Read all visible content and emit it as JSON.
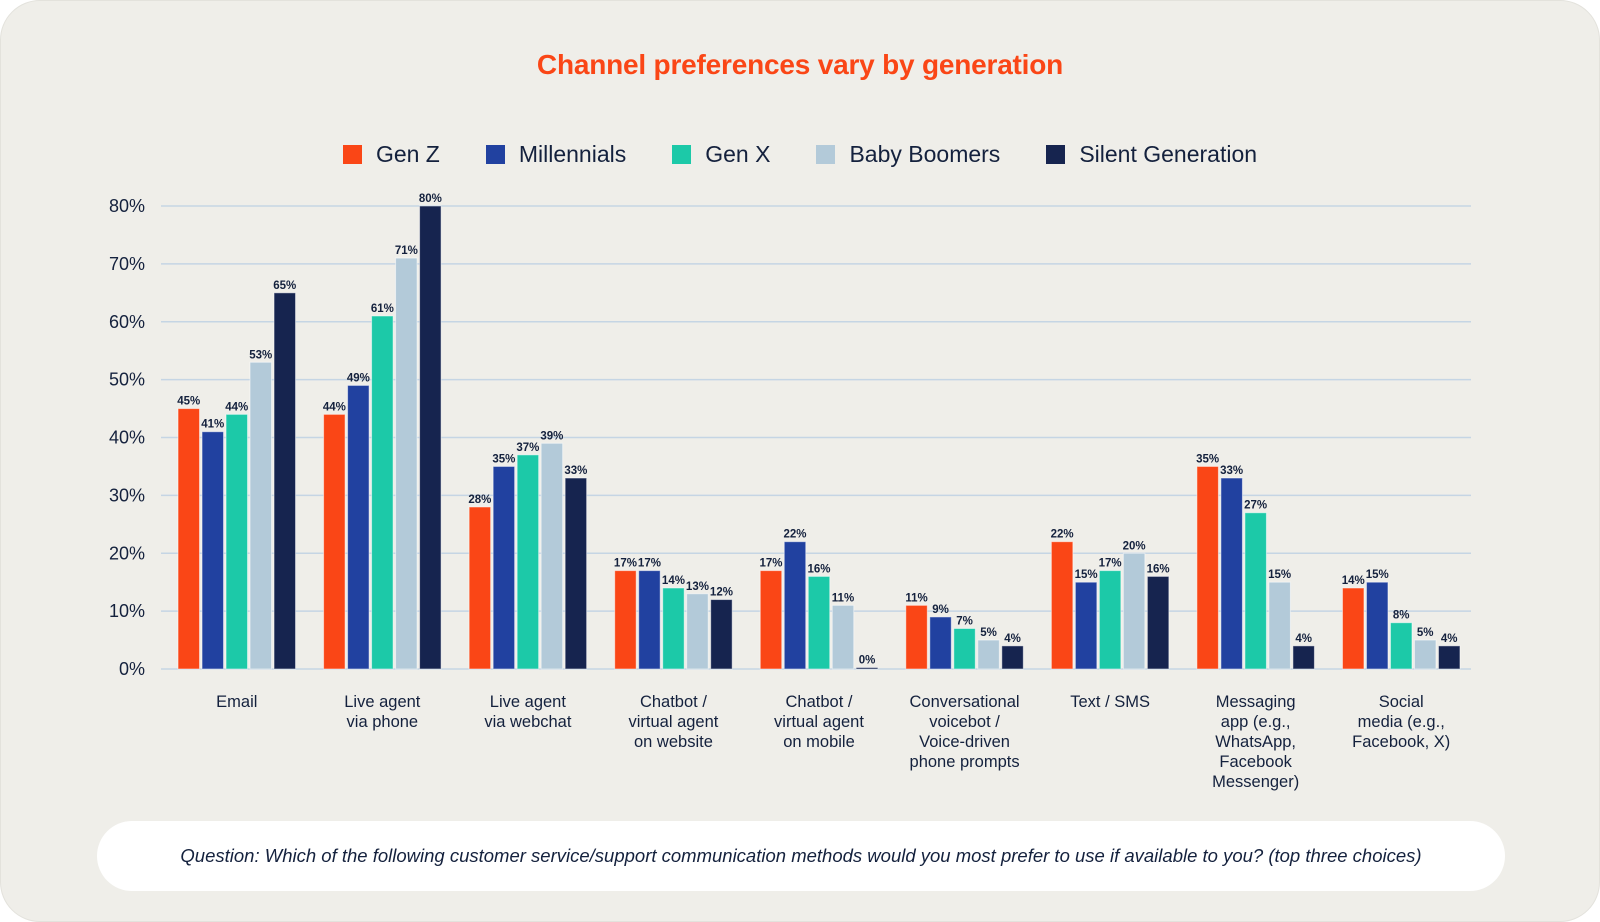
{
  "chart_data": {
    "type": "bar",
    "title": "Channel preferences vary by generation",
    "xlabel": "",
    "ylabel": "",
    "ylim": [
      0,
      80
    ],
    "yticks": [
      "0%",
      "10%",
      "20%",
      "30%",
      "40%",
      "50%",
      "60%",
      "70%",
      "80%"
    ],
    "ytick_values": [
      0,
      10,
      20,
      30,
      40,
      50,
      60,
      70,
      80
    ],
    "grid": true,
    "legend_position": "top-center",
    "categories": [
      [
        "Email"
      ],
      [
        "Live agent",
        "via phone"
      ],
      [
        "Live agent",
        "via webchat"
      ],
      [
        "Chatbot /",
        "virtual agent",
        "on website"
      ],
      [
        "Chatbot /",
        "virtual agent",
        "on mobile"
      ],
      [
        "Conversational",
        "voicebot /",
        "Voice-driven",
        "phone prompts"
      ],
      [
        "Text / SMS"
      ],
      [
        "Messaging",
        "app (e.g.,",
        "WhatsApp,",
        "Facebook",
        "Messenger)"
      ],
      [
        "Social",
        "media (e.g.,",
        "Facebook, X)"
      ]
    ],
    "series": [
      {
        "name": "Gen Z",
        "color": "#fa4616",
        "values": [
          45,
          44,
          28,
          17,
          17,
          11,
          22,
          35,
          14
        ]
      },
      {
        "name": "Millennials",
        "color": "#2141a0",
        "values": [
          41,
          49,
          35,
          17,
          22,
          9,
          15,
          33,
          15
        ]
      },
      {
        "name": "Gen X",
        "color": "#1cc9a8",
        "values": [
          44,
          61,
          37,
          14,
          16,
          7,
          17,
          27,
          8
        ]
      },
      {
        "name": "Baby Boomers",
        "color": "#b3cad9",
        "values": [
          53,
          71,
          39,
          13,
          11,
          5,
          20,
          15,
          5
        ]
      },
      {
        "name": "Silent Generation",
        "color": "#16244f",
        "values": [
          65,
          80,
          33,
          12,
          0,
          4,
          16,
          4,
          4
        ]
      }
    ],
    "value_suffix": "%"
  },
  "footer": {
    "question": "Question: Which of the following customer service/support communication methods would you most prefer to use if available to you? (top three choices)"
  }
}
